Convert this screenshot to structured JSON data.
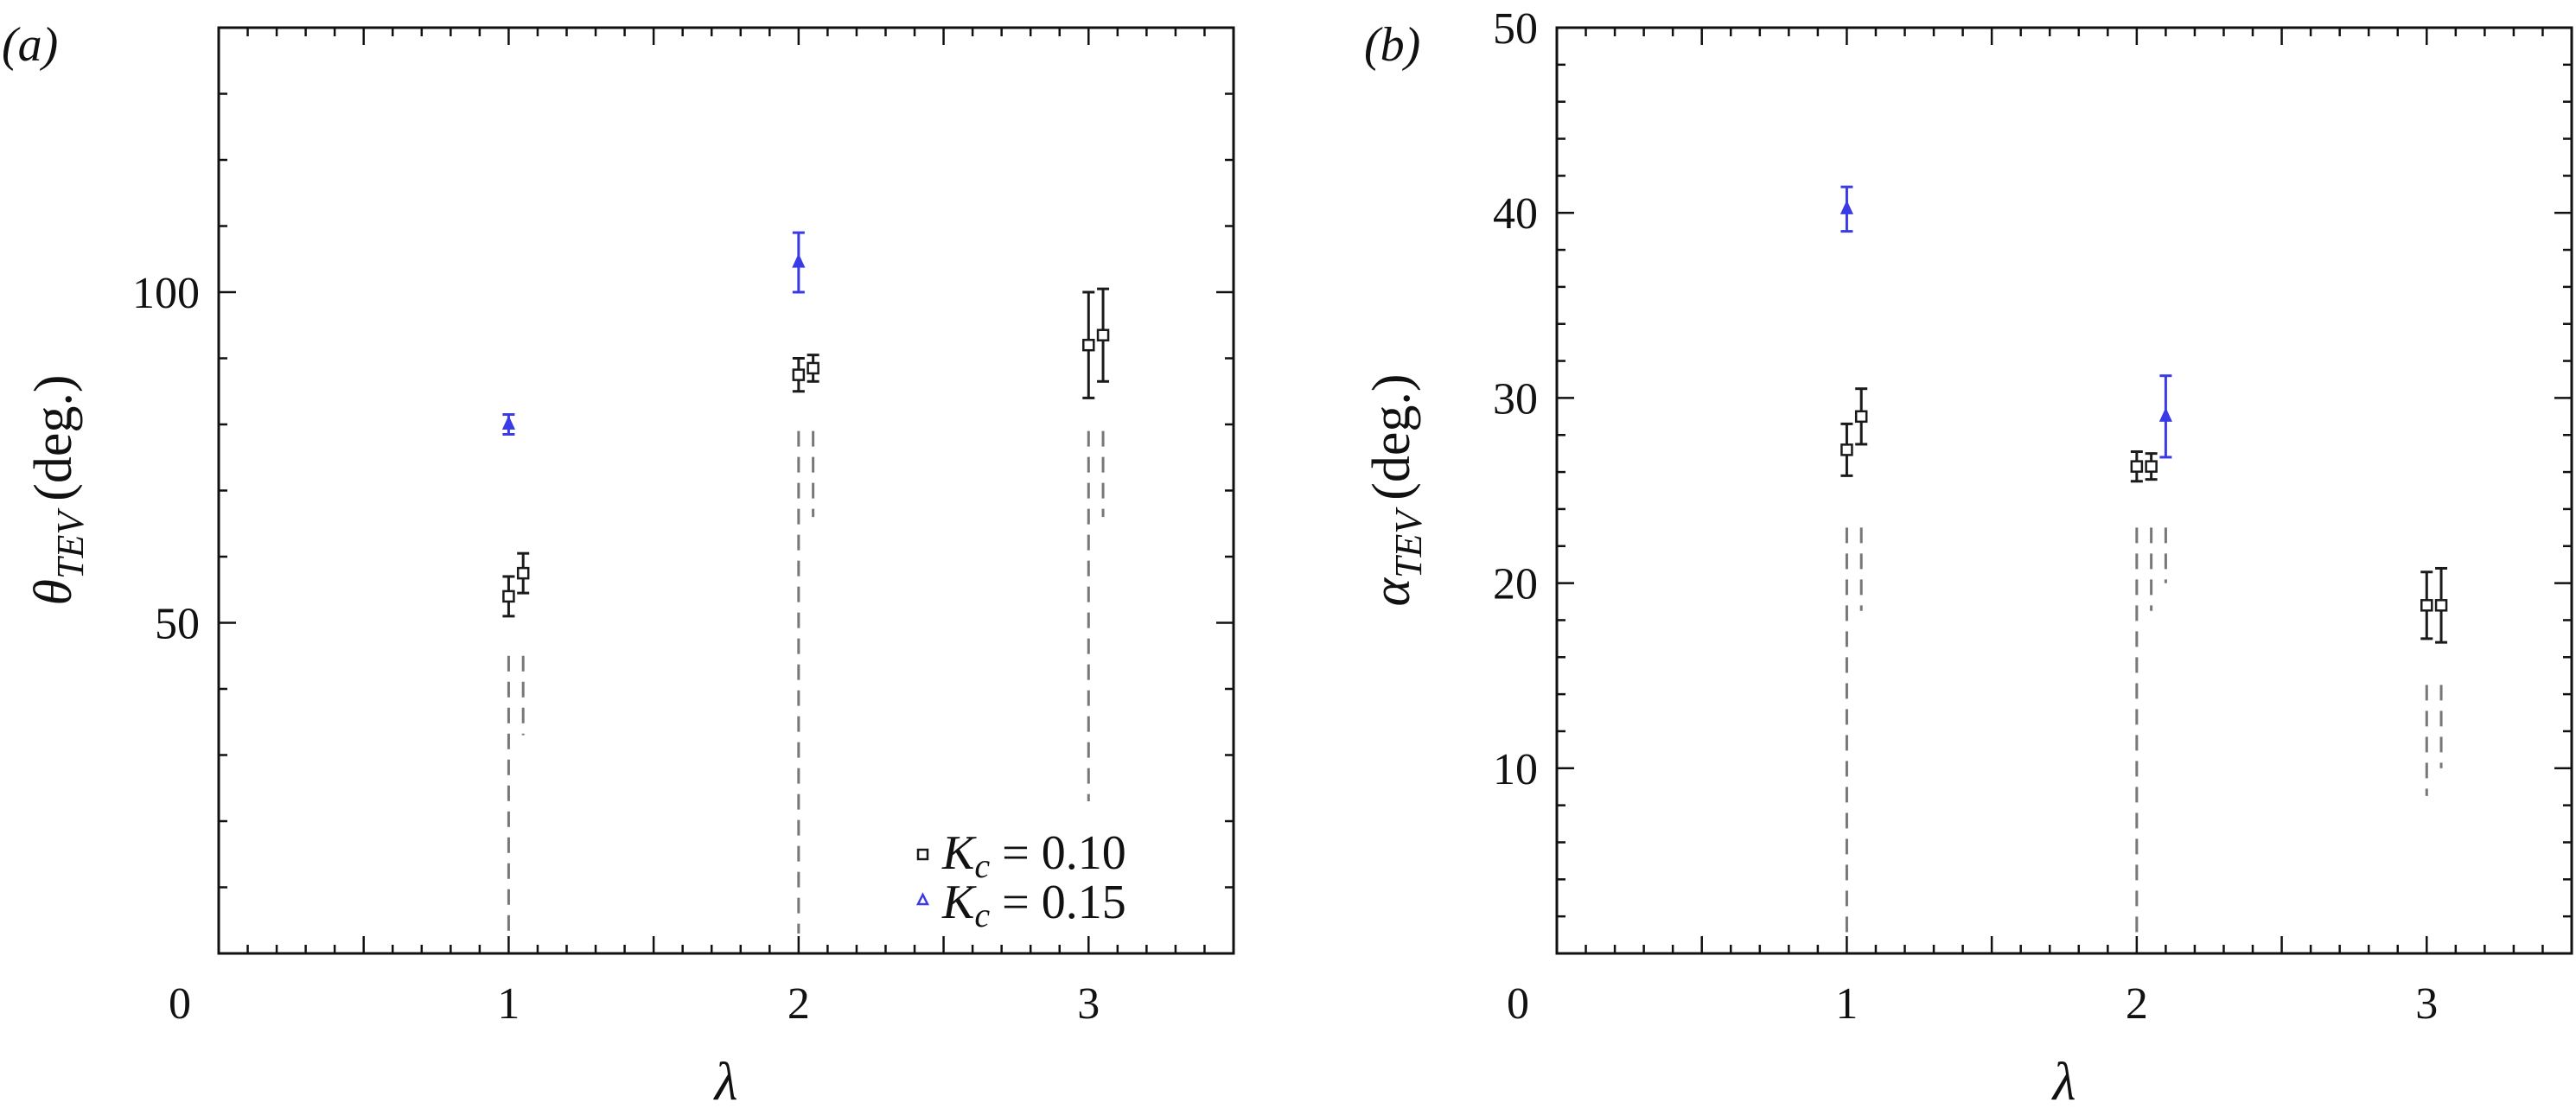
{
  "colors": {
    "axis": "#111111",
    "series_kc010": "#1a1a1a",
    "series_kc015": "#3a3ae6",
    "dashed": "#777777"
  },
  "chart_data": [
    {
      "type": "scatter",
      "panel_label": "(a)",
      "ylabel": {
        "symbol": "θ",
        "subscript": "TEV",
        "unit": "(deg.)"
      },
      "xlabel": "λ",
      "xlim": [
        0,
        3.5
      ],
      "ylim": [
        0,
        140
      ],
      "x_ticks": [
        "0",
        "1",
        "2",
        "3"
      ],
      "y_ticks": [
        "50",
        "100"
      ],
      "legend_position": "bottom-right",
      "legend": [
        {
          "marker": "square",
          "symbol": "K",
          "subscript": "c",
          "text": " = 0.10"
        },
        {
          "marker": "triangle",
          "symbol": "K",
          "subscript": "c",
          "text": " = 0.15"
        }
      ],
      "series": [
        {
          "name": "K_c = 0.10",
          "marker": "square",
          "points": [
            {
              "x": 1.0,
              "y": 54,
              "err": 3
            },
            {
              "x": 1.05,
              "y": 57.5,
              "err": 3
            },
            {
              "x": 2.0,
              "y": 87.5,
              "err": 2.5
            },
            {
              "x": 2.05,
              "y": 88.5,
              "err": 2
            },
            {
              "x": 3.0,
              "y": 92,
              "err": 8
            },
            {
              "x": 3.05,
              "y": 93.5,
              "err": 7
            }
          ]
        },
        {
          "name": "K_c = 0.15",
          "marker": "triangle",
          "points": [
            {
              "x": 1.0,
              "y": 80,
              "err": 1.5
            },
            {
              "x": 2.0,
              "y": 104.5,
              "err": 4.5
            }
          ]
        }
      ],
      "dashed_lines": [
        {
          "x": 1.0,
          "y_top": 45,
          "y_bottom": 3
        },
        {
          "x": 1.05,
          "y_top": 45,
          "y_bottom": 33
        },
        {
          "x": 2.0,
          "y_top": 79,
          "y_bottom": 3
        },
        {
          "x": 2.05,
          "y_top": 79,
          "y_bottom": 66
        },
        {
          "x": 3.0,
          "y_top": 79,
          "y_bottom": 23
        },
        {
          "x": 3.05,
          "y_top": 79,
          "y_bottom": 66
        }
      ]
    },
    {
      "type": "scatter",
      "panel_label": "(b)",
      "ylabel": {
        "symbol": "α",
        "subscript": "TEV",
        "unit": "(deg.)"
      },
      "xlabel": "λ",
      "xlim": [
        0,
        3.5
      ],
      "ylim": [
        0,
        50
      ],
      "x_ticks": [
        "0",
        "1",
        "2",
        "3"
      ],
      "y_ticks": [
        "10",
        "20",
        "30",
        "40",
        "50"
      ],
      "series": [
        {
          "name": "K_c = 0.10",
          "marker": "square",
          "points": [
            {
              "x": 1.0,
              "y": 27.2,
              "err": 1.4
            },
            {
              "x": 1.05,
              "y": 29.0,
              "err": 1.5
            },
            {
              "x": 2.0,
              "y": 26.3,
              "err": 0.8
            },
            {
              "x": 2.05,
              "y": 26.3,
              "err": 0.7
            },
            {
              "x": 3.0,
              "y": 18.8,
              "err": 1.8
            },
            {
              "x": 3.05,
              "y": 18.8,
              "err": 2.0
            }
          ]
        },
        {
          "name": "K_c = 0.15",
          "marker": "triangle",
          "points": [
            {
              "x": 1.0,
              "y": 40.2,
              "err": 1.2
            },
            {
              "x": 2.1,
              "y": 29.0,
              "err": 2.2
            }
          ]
        }
      ],
      "dashed_lines": [
        {
          "x": 1.0,
          "y_top": 23,
          "y_bottom": 1
        },
        {
          "x": 1.05,
          "y_top": 23,
          "y_bottom": 18.5
        },
        {
          "x": 2.0,
          "y_top": 23,
          "y_bottom": 1
        },
        {
          "x": 2.05,
          "y_top": 23,
          "y_bottom": 18.5
        },
        {
          "x": 2.1,
          "y_top": 23,
          "y_bottom": 20
        },
        {
          "x": 3.0,
          "y_top": 14.5,
          "y_bottom": 8.5
        },
        {
          "x": 3.05,
          "y_top": 14.5,
          "y_bottom": 10
        }
      ]
    }
  ]
}
